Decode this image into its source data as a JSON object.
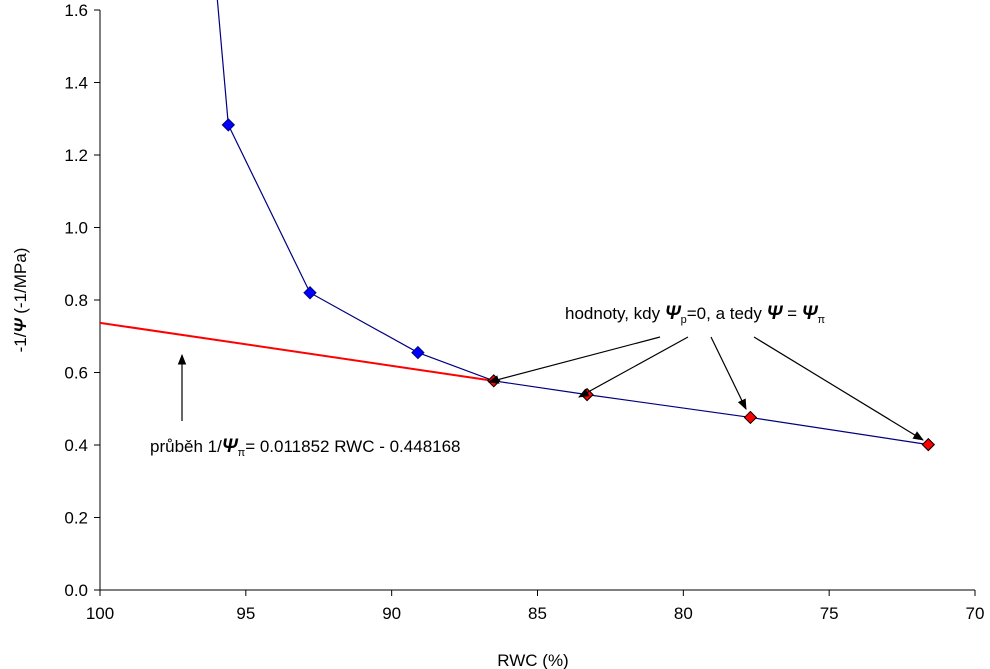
{
  "chart_data": {
    "type": "line",
    "xlabel": "RWC (%)",
    "ylabel_prefix": "-1/",
    "ylabel_psi": "Ψ",
    "ylabel_suffix": " (-1/MPa)",
    "xlim": [
      100,
      70
    ],
    "x_reversed": true,
    "ylim": [
      0.0,
      1.6
    ],
    "x_ticks": [
      "100",
      "95",
      "90",
      "85",
      "80",
      "75",
      "70"
    ],
    "x_tick_values": [
      100,
      95,
      90,
      85,
      80,
      75,
      70
    ],
    "y_ticks": [
      "0.0",
      "0.2",
      "0.4",
      "0.6",
      "0.8",
      "1.0",
      "1.2",
      "1.4",
      "1.6"
    ],
    "y_tick_values": [
      0.0,
      0.2,
      0.4,
      0.6,
      0.8,
      1.0,
      1.2,
      1.4,
      1.6
    ],
    "grid": false,
    "series": [
      {
        "kind": "measured",
        "color": "#000080",
        "marker": "diamond",
        "marker_color": "#0000ff",
        "arrow_to": {
          "x": 96.0,
          "y": 1.65
        },
        "x": [
          95.6,
          92.8,
          89.1,
          86.5,
          83.3,
          77.7,
          71.6
        ],
        "y": [
          1.283,
          0.82,
          0.655,
          0.577,
          0.539,
          0.476,
          0.401
        ]
      },
      {
        "kind": "osmotic_fit",
        "color": "#ff0000",
        "x": [
          100,
          86.5
        ],
        "y": [
          0.737,
          0.577
        ]
      }
    ],
    "highlight_points": {
      "marker_fill": "#ff0000",
      "marker_edge": "#000000",
      "x": [
        86.5,
        83.3,
        77.7,
        71.6
      ],
      "y": [
        0.577,
        0.539,
        0.476,
        0.401
      ]
    },
    "annotations": {
      "points_label": {
        "a": "hodnoty, kdy ",
        "psi1": "Ψ",
        "sub1": "p",
        "b": "=0, a tedy ",
        "psi2": "Ψ",
        "c": " = ",
        "psi3": "Ψ",
        "sub3": "π"
      },
      "fit_label": {
        "a": "průběh 1/",
        "psi": "Ψ",
        "sub": "π",
        "b": "= 0.011852 RWC - 0.448168"
      }
    }
  }
}
